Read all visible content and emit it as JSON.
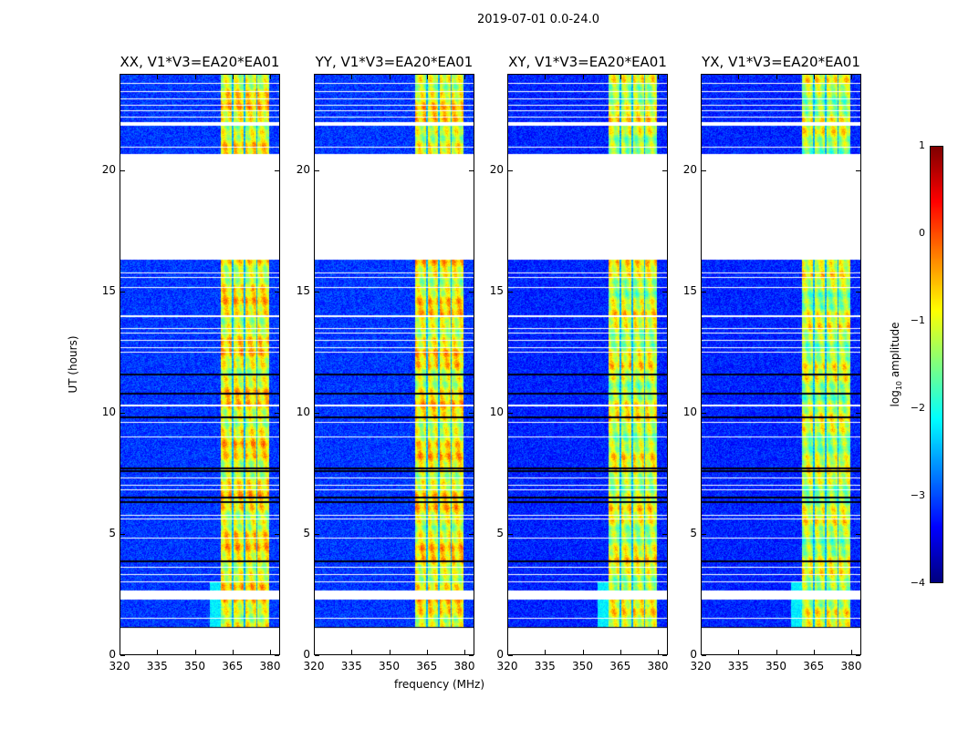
{
  "suptitle": "2019-07-01 0.0-24.0",
  "chart_data": {
    "type": "heatmap",
    "title": "2019-07-01 0.0-24.0",
    "xlabel": "frequency (MHz)",
    "ylabel": "UT (hours)",
    "xlim": [
      320,
      384
    ],
    "ylim": [
      0,
      24
    ],
    "xticks": [
      "320",
      "335",
      "350",
      "365",
      "380"
    ],
    "xtick_values": [
      320,
      335,
      350,
      365,
      380
    ],
    "yticks": [
      "0",
      "5",
      "10",
      "15",
      "20"
    ],
    "ytick_values": [
      0,
      5,
      10,
      15,
      20
    ],
    "panels": [
      {
        "title": "XX, V1*V3=EA20*EA01",
        "background_level": -3.1,
        "band_level": -0.9
      },
      {
        "title": "YY, V1*V3=EA20*EA01",
        "background_level": -3.1,
        "band_level": -0.9
      },
      {
        "title": "XY, V1*V3=EA20*EA01",
        "background_level": -3.2,
        "band_level": -1.1
      },
      {
        "title": "YX, V1*V3=EA20*EA01",
        "background_level": -3.2,
        "band_level": -1.2
      }
    ],
    "rfi_band_mhz": [
      360.5,
      380.0
    ],
    "rfi_gap_channels_mhz": [
      365.3,
      370.1,
      375.0
    ],
    "flagged_time_ranges_hours": [
      [
        0,
        1.1
      ],
      [
        2.25,
        2.65
      ],
      [
        16.35,
        20.7
      ],
      [
        21.9,
        22.05
      ]
    ],
    "flagged_lines_hours": [
      1.5,
      3.0,
      3.3,
      3.6,
      4.8,
      5.6,
      5.75,
      6.8,
      7.0,
      7.3,
      9.0,
      9.6,
      10.3,
      12.5,
      12.7,
      13.0,
      13.3,
      13.5,
      14.0,
      15.2,
      15.6,
      15.8,
      21.0,
      22.25,
      22.5,
      22.75,
      23.0,
      23.3,
      23.65
    ],
    "dark_lines_hours": [
      1.1,
      3.85,
      6.3,
      6.5,
      7.6,
      7.7,
      9.8,
      10.8,
      11.6,
      22.0
    ],
    "colorbar": {
      "label": "log10 amplitude",
      "label_main": "log",
      "label_sub": "10",
      "label_rest": " amplitude",
      "range": [
        -4,
        1
      ],
      "ticks": [
        "1",
        "0",
        "−1",
        "−2",
        "−3",
        "−4"
      ],
      "tick_values": [
        1,
        0,
        -1,
        -2,
        -3,
        -4
      ],
      "colormap": "jet"
    }
  }
}
